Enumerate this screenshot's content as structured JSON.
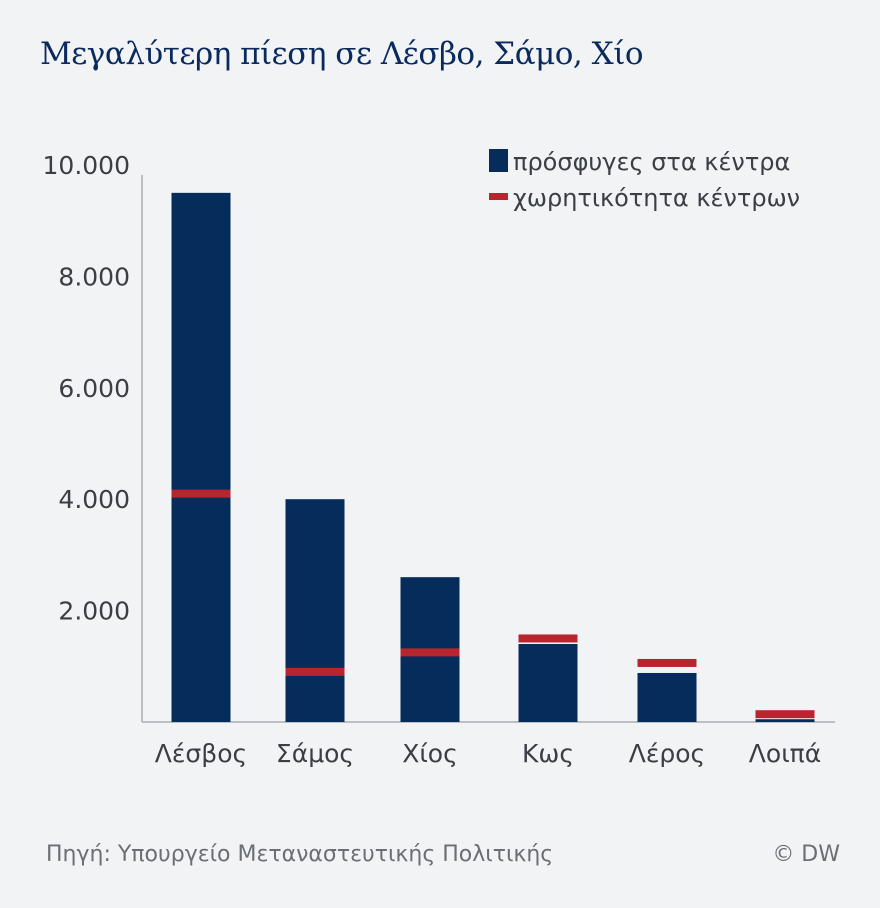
{
  "title": "Μεγαλύτερη πίεση σε Λέσβο, Σάμο, Χίο",
  "source": "Πηγή: Υπουργείο Μεταναστευτικής Πολιτικής",
  "copyright": "© DW",
  "chart_data": {
    "type": "bar",
    "categories": [
      "Λέσβος",
      "Σάμος",
      "Χίος",
      "Κως",
      "Λέρος",
      "Λοιπά"
    ],
    "series": [
      {
        "name": "πρόσφυγες στα κέντρα",
        "kind": "bar",
        "color": "#052c5a",
        "values": [
          9500,
          4000,
          2600,
          1400,
          880,
          50
        ]
      },
      {
        "name": "χωρητικότητα κέντρων",
        "kind": "marker",
        "color": "#b8252f",
        "values": [
          4100,
          900,
          1250,
          1500,
          1060,
          140
        ]
      }
    ],
    "ylim": [
      0,
      10000
    ],
    "yticks": [
      2000,
      4000,
      6000,
      8000,
      10000
    ],
    "ytick_labels": [
      "2.000",
      "4.000",
      "6.000",
      "8.000",
      "10.000"
    ],
    "legend": "top-right",
    "grid": false
  }
}
